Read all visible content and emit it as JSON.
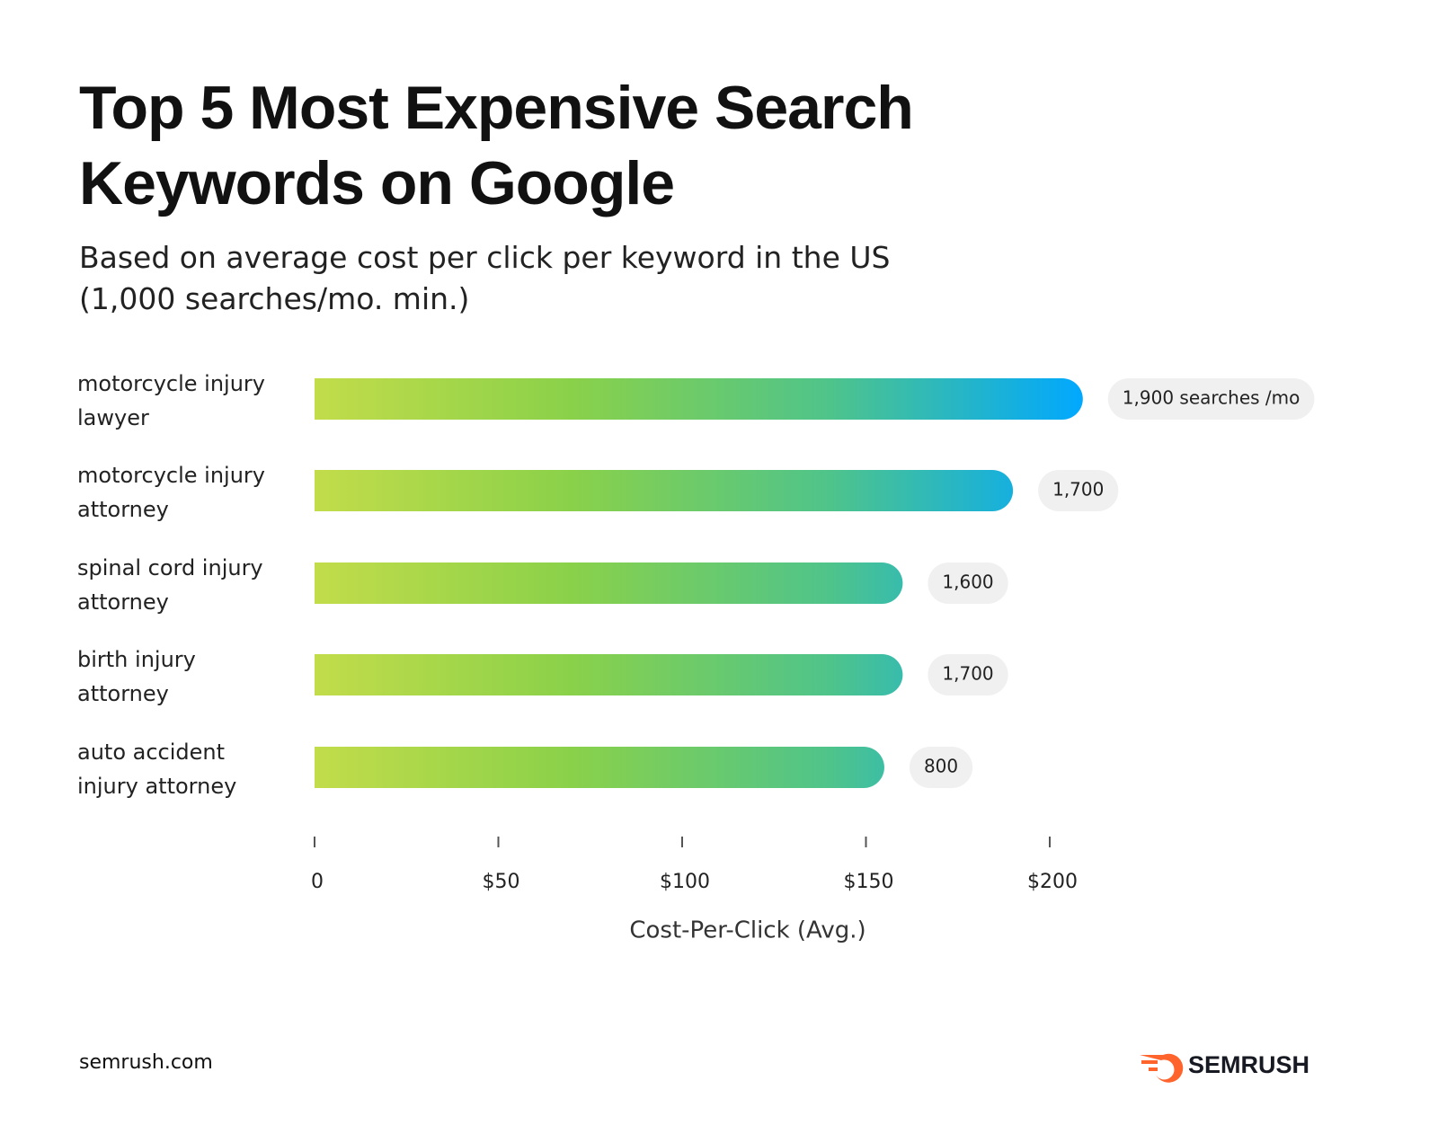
{
  "chart_data": {
    "type": "bar",
    "orientation": "horizontal",
    "title": "Top 5 Most Expensive Search Keywords on Google",
    "subtitle": "Based on average cost per click per keyword in the US (1,000 searches/mo. min.)",
    "categories": [
      [
        "motorcycle injury",
        "lawyer"
      ],
      [
        "motorcycle injury",
        "attorney"
      ],
      [
        "spinal cord injury",
        "attorney"
      ],
      [
        "birth injury",
        "attorney"
      ],
      [
        "auto accident",
        "injury attorney"
      ]
    ],
    "values": [
      209,
      190,
      160,
      160,
      155
    ],
    "bar_colors": [
      "#c2dc4a",
      "#8ad14a",
      "#4fc48a",
      "#00a8ff"
    ],
    "searches": {
      "values": [
        1900,
        1700,
        1600,
        1700,
        800
      ],
      "value_labels": [
        "1,900 searches /mo",
        "1,700",
        "1,600",
        "1,700",
        "800"
      ]
    },
    "xlim": [
      0,
      200
    ],
    "xticks": [
      0,
      {
        "value": 50,
        "label": "$50"
      },
      {
        "value": 100,
        "label": "$100"
      },
      {
        "value": 150,
        "label": "$150"
      },
      {
        "value": 200,
        "label": "$200"
      }
    ],
    "xlabel": "Cost-Per-Click (Avg.)",
    "source": "semrush.com",
    "brand": "SEMRUSH"
  }
}
